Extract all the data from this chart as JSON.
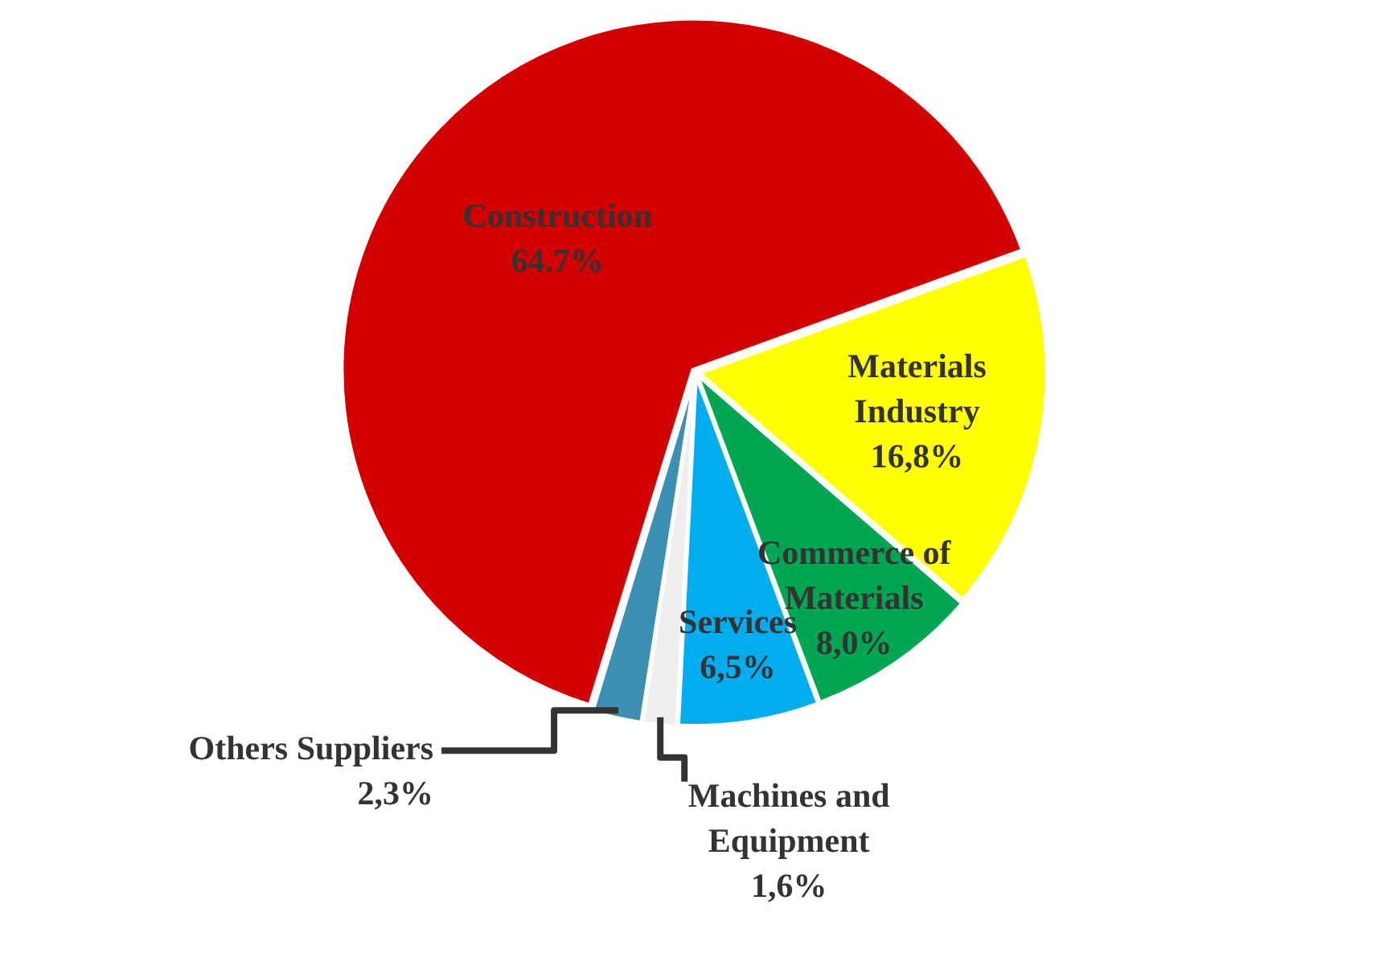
{
  "chart_data": {
    "type": "pie",
    "categories": [
      "Construction",
      "Materials Industry",
      "Commerce of Materials",
      "Services",
      "Machines and Equipment",
      "Others Suppliers"
    ],
    "values": [
      64.7,
      16.8,
      8.0,
      6.5,
      1.6,
      2.3
    ],
    "value_labels": [
      "64.7%",
      "16,8%",
      "8,0%",
      "6,5%",
      "1,6%",
      "2,3%"
    ],
    "colors": [
      "#d40000",
      "#ffff00",
      "#00a651",
      "#00aeef",
      "#eeeeee",
      "#3b8fb3"
    ],
    "legend": false
  }
}
